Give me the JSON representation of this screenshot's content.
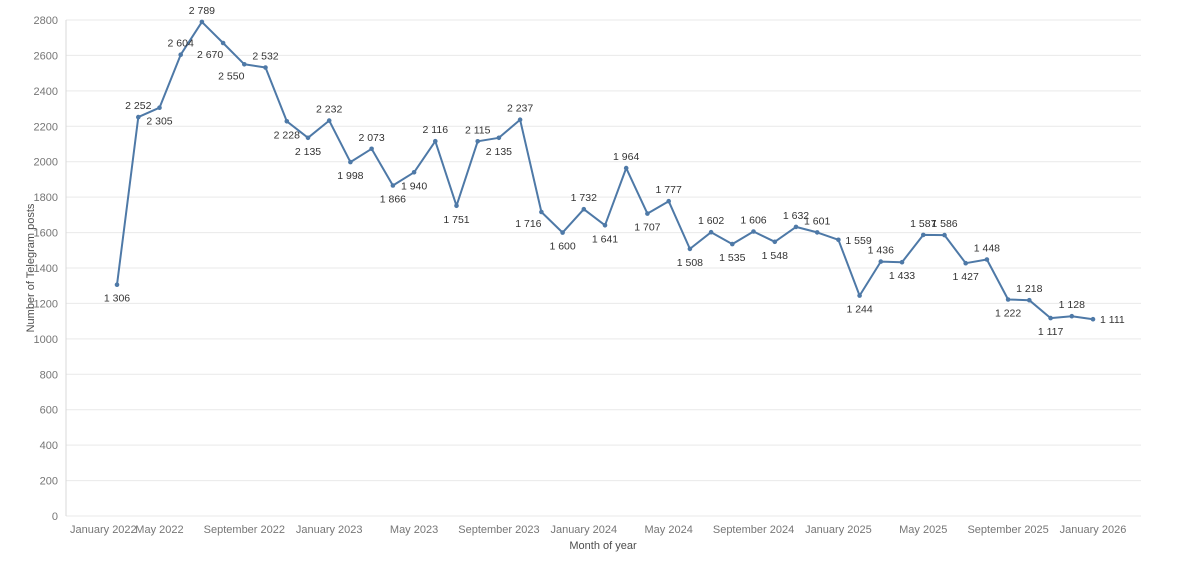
{
  "chart_data": {
    "type": "line",
    "xlabel": "Month of year",
    "ylabel": "Number of Telegram posts",
    "x": [
      "March 2022",
      "April 2022",
      "May 2022",
      "June 2022",
      "July 2022",
      "August 2022",
      "September 2022",
      "October 2022",
      "November 2022",
      "December 2022",
      "January 2023",
      "February 2023",
      "March 2023",
      "April 2023",
      "May 2023",
      "June 2023",
      "July 2023",
      "August 2023",
      "September 2023",
      "October 2023",
      "November 2023",
      "December 2023",
      "January 2024",
      "February 2024",
      "March 2024",
      "April 2024",
      "May 2024",
      "June 2024",
      "July 2024",
      "August 2024",
      "September 2024",
      "October 2024",
      "November 2024",
      "December 2024",
      "January 2025",
      "February 2025",
      "March 2025",
      "April 2025",
      "May 2025",
      "June 2025",
      "July 2025",
      "August 2025",
      "September 2025",
      "October 2025",
      "November 2025",
      "December 2025",
      "January 2026"
    ],
    "values": [
      1306,
      2252,
      2305,
      2604,
      2789,
      2670,
      2550,
      2532,
      2228,
      2135,
      2232,
      1998,
      2073,
      1866,
      1940,
      2116,
      1751,
      2115,
      2135,
      2237,
      1716,
      1600,
      1732,
      1641,
      1964,
      1707,
      1777,
      1508,
      1602,
      1535,
      1606,
      1548,
      1632,
      1601,
      1559,
      1244,
      1436,
      1433,
      1587,
      1586,
      1427,
      1448,
      1222,
      1218,
      1117,
      1128,
      1111
    ],
    "point_labels": [
      "1 306",
      "2 252",
      "2 305",
      "2 604",
      "2 789",
      "2 670",
      "2 550",
      "2 532",
      "2 228",
      "2 135",
      "2 232",
      "1 998",
      "2 073",
      "1 866",
      "1 940",
      "2 116",
      "1 751",
      "2 115",
      "2 135",
      "2 237",
      "1 716",
      "1 600",
      "1 732",
      "1 641",
      "1 964",
      "1 707",
      "1 777",
      "1 508",
      "1 602",
      "1 535",
      "1 606",
      "1 548",
      "1 632",
      "1 601",
      "1 559",
      "1 244",
      "1 436",
      "1 433",
      "1 587",
      "1 586",
      "1 427",
      "1 448",
      "1 222",
      "1 218",
      "1 117",
      "1 128",
      "1 111"
    ],
    "point_label_positions": [
      "below",
      "above",
      "below",
      "above",
      "above",
      "below-left",
      "below-left",
      "above",
      "below",
      "below",
      "above",
      "below",
      "above",
      "below",
      "below",
      "above",
      "below",
      "above",
      "below",
      "above",
      "below-left",
      "below",
      "above",
      "below",
      "above",
      "below",
      "above",
      "below",
      "above",
      "below",
      "above",
      "below",
      "above",
      "above",
      "right",
      "below",
      "above",
      "below",
      "above",
      "above",
      "below",
      "above",
      "below",
      "above",
      "below",
      "above",
      "right"
    ],
    "x_axis_ticks": [
      "January 2022",
      "May 2022",
      "September 2022",
      "January 2023",
      "May 2023",
      "September 2023",
      "January 2024",
      "May 2024",
      "September 2024",
      "January 2025",
      "May 2025",
      "September 2025",
      "January 2026"
    ],
    "y_axis_ticks": [
      0,
      200,
      400,
      600,
      800,
      1000,
      1200,
      1400,
      1600,
      1800,
      2000,
      2200,
      2400,
      2600,
      2800
    ],
    "ylim": [
      0,
      2800
    ],
    "grid": "horizontal",
    "legend": "none",
    "colors": {
      "line": "#4e79a7",
      "marker": "#4e79a7",
      "data_label": "#333333",
      "axis_text": "#767676",
      "axis_title": "#4d4d4d",
      "gridline": "#e9e9e9",
      "axis_line": "#d8d8d8",
      "background": "#ffffff"
    }
  }
}
